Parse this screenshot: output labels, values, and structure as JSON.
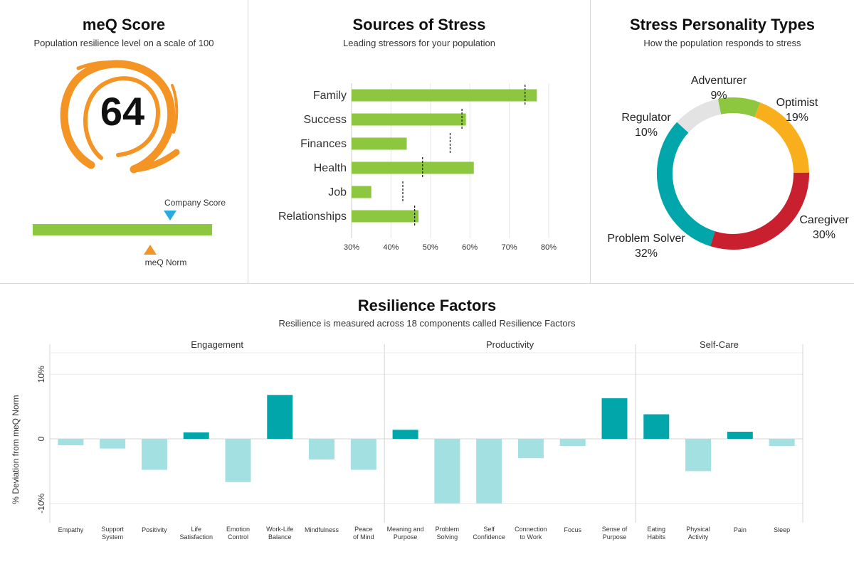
{
  "meq": {
    "title": "meQ Score",
    "subtitle": "Population resilience level on a scale of 100",
    "score": "64",
    "company_label": "Company Score",
    "norm_label": "meQ Norm",
    "colors": {
      "logo": "#f39425",
      "bar": "#8dc63f",
      "company_marker": "#2aa8e0",
      "norm_marker": "#f39425"
    }
  },
  "stress": {
    "title": "Sources of Stress",
    "subtitle": "Leading stressors for your population"
  },
  "personality": {
    "title": "Stress Personality Types",
    "subtitle": "How the population responds to stress"
  },
  "resilience": {
    "title": "Resilience Factors",
    "subtitle": "Resilience is measured across 18 components called Resilience Factors"
  },
  "chart_data": [
    {
      "id": "stress",
      "type": "bar",
      "orientation": "horizontal",
      "title": "Sources of Stress",
      "categories": [
        "Family",
        "Success",
        "Finances",
        "Health",
        "Job",
        "Relationships"
      ],
      "values": [
        77,
        59,
        44,
        61,
        35,
        47
      ],
      "norms": [
        74,
        58,
        55,
        48,
        43,
        46
      ],
      "xlim": [
        30,
        82
      ],
      "ticks": [
        "30%",
        "40%",
        "50%",
        "60%",
        "70%",
        "80%"
      ],
      "tick_values": [
        30,
        40,
        50,
        60,
        70,
        80
      ],
      "bar_color": "#8dc63f"
    },
    {
      "id": "personality",
      "type": "pie",
      "style": "donut",
      "title": "Stress Personality Types",
      "slices": [
        {
          "name": "Adventurer",
          "value": 9,
          "label": "9%",
          "color": "#8dc63f"
        },
        {
          "name": "Optimist",
          "value": 19,
          "label": "19%",
          "color": "#f9ae1b"
        },
        {
          "name": "Caregiver",
          "value": 30,
          "label": "30%",
          "color": "#c8202f"
        },
        {
          "name": "Problem Solver",
          "value": 32,
          "label": "32%",
          "color": "#00a6aa"
        },
        {
          "name": "Regulator",
          "value": 10,
          "label": "10%",
          "color": "#e3e3e3"
        }
      ]
    },
    {
      "id": "resilience",
      "type": "bar",
      "title": "Resilience Factors",
      "ylabel": "% Deviation from meQ Norm",
      "ylim": [
        -13,
        13
      ],
      "yticks": [
        {
          "value": 10,
          "label": "10%"
        },
        {
          "value": 0,
          "label": "0"
        },
        {
          "value": -10,
          "label": "-10%"
        }
      ],
      "groups": [
        {
          "name": "Engagement",
          "count": 8
        },
        {
          "name": "Productivity",
          "count": 6
        },
        {
          "name": "Self-Care",
          "count": 4
        }
      ],
      "categories": [
        [
          "Empathy"
        ],
        [
          "Support",
          "System"
        ],
        [
          "Positivity"
        ],
        [
          "Life",
          "Satisfaction"
        ],
        [
          "Emotion",
          "Control"
        ],
        [
          "Work-Life",
          "Balance"
        ],
        [
          "Mindfulness"
        ],
        [
          "Peace",
          "of Mind"
        ],
        [
          "Meaning and",
          "Purpose"
        ],
        [
          "Problem",
          "Solving"
        ],
        [
          "Self",
          "Confidence"
        ],
        [
          "Connection",
          "to Work"
        ],
        [
          "Focus"
        ],
        [
          "Sense of",
          "Purpose"
        ],
        [
          "Eating",
          "Habits"
        ],
        [
          "Physical",
          "Activity"
        ],
        [
          "Pain"
        ],
        [
          "Sleep"
        ]
      ],
      "values": [
        -1,
        -1.5,
        -4.8,
        1,
        -6.7,
        6.8,
        -3.2,
        -4.8,
        1.4,
        -10,
        -10,
        -3,
        -1.1,
        6.3,
        3.8,
        -5,
        1.1,
        -1.1
      ],
      "pos_color": "#00a6aa",
      "neg_color": "#a3e0e2"
    }
  ]
}
